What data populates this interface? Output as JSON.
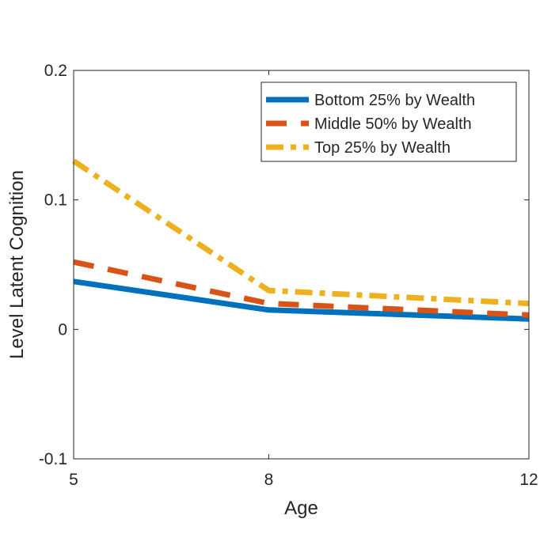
{
  "chart_data": {
    "type": "line",
    "title": "",
    "xlabel": "Age",
    "ylabel": "Level Latent Cognition",
    "x": [
      5,
      8,
      12
    ],
    "xlim": [
      5,
      12
    ],
    "ylim": [
      -0.1,
      0.2
    ],
    "xticks": [
      5,
      8,
      12
    ],
    "xtick_labels": [
      "5",
      "8",
      "12"
    ],
    "yticks": [
      -0.1,
      0,
      0.1,
      0.2
    ],
    "ytick_labels": [
      "-0.1",
      "0",
      "0.1",
      "0.2"
    ],
    "grid": false,
    "legend_position": "top-right",
    "series": [
      {
        "name": "Bottom 25% by Wealth",
        "values": [
          0.037,
          0.015,
          0.008
        ],
        "color": "#0072BD",
        "style": "solid"
      },
      {
        "name": "Middle 50% by Wealth",
        "values": [
          0.052,
          0.02,
          0.011
        ],
        "color": "#D95319",
        "style": "dashed"
      },
      {
        "name": "Top 25% by Wealth",
        "values": [
          0.13,
          0.03,
          0.02
        ],
        "color": "#EDB120",
        "style": "dashdot"
      }
    ]
  }
}
